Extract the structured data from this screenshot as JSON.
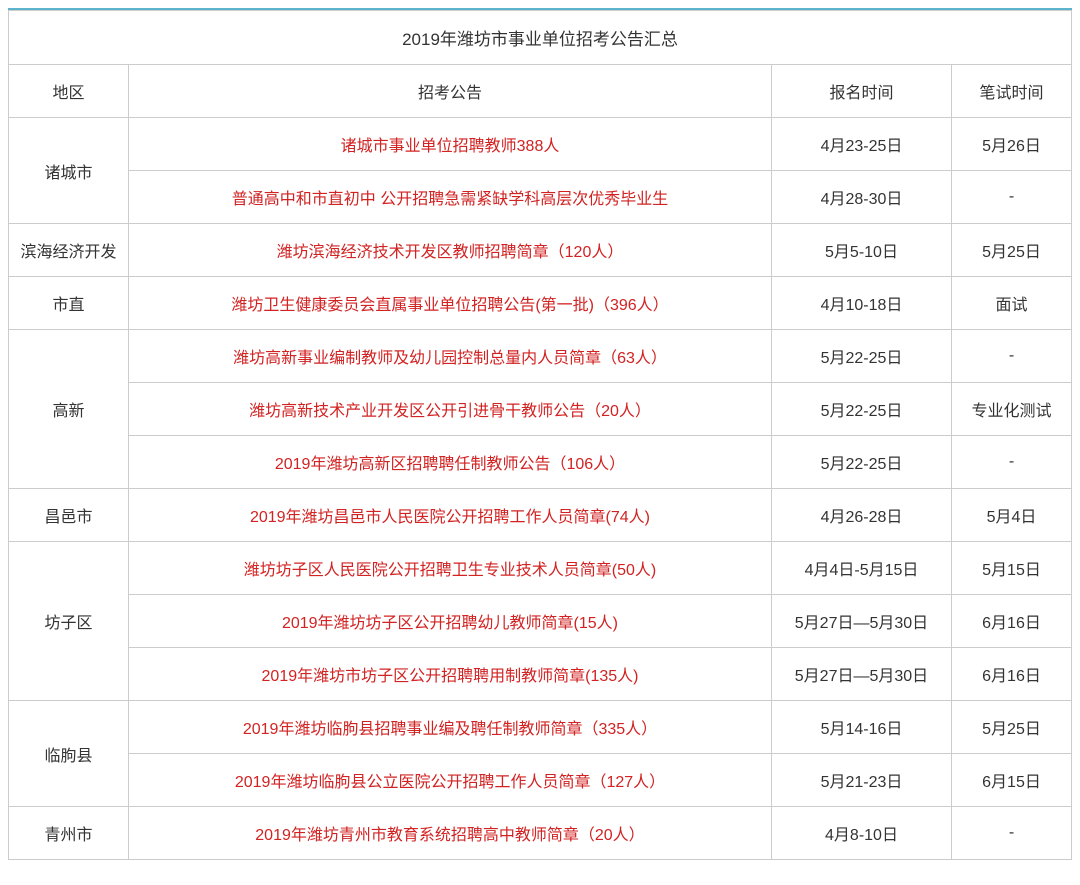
{
  "title": "2019年潍坊市事业单位招考公告汇总",
  "headers": {
    "region": "地区",
    "notice": "招考公告",
    "signup": "报名时间",
    "exam": "笔试时间"
  },
  "colors": {
    "border_top": "#5cb3cc",
    "border": "#cccccc",
    "link": "#d22222",
    "text": "#333333",
    "background": "#ffffff"
  },
  "font": {
    "family": "Microsoft YaHei",
    "size_title": 17,
    "size_body": 16
  },
  "column_widths": {
    "region": 120,
    "signup": 180,
    "exam": 120
  },
  "rows": [
    {
      "region": "诸城市",
      "rowspan": 2,
      "notice": "诸城市事业单位招聘教师388人",
      "signup": "4月23-25日",
      "exam": "5月26日"
    },
    {
      "notice": "普通高中和市直初中 公开招聘急需紧缺学科高层次优秀毕业生",
      "signup": "4月28-30日",
      "exam": "-"
    },
    {
      "region": "滨海经济开发",
      "rowspan": 1,
      "notice": "潍坊滨海经济技术开发区教师招聘简章（120人）",
      "signup": "5月5-10日",
      "exam": "5月25日"
    },
    {
      "region": "市直",
      "rowspan": 1,
      "notice": "潍坊卫生健康委员会直属事业单位招聘公告(第一批)（396人）",
      "signup": "4月10-18日",
      "exam": "面试"
    },
    {
      "region": "高新",
      "rowspan": 3,
      "notice": "潍坊高新事业编制教师及幼儿园控制总量内人员简章（63人）",
      "signup": "5月22-25日",
      "exam": "-"
    },
    {
      "notice": "潍坊高新技术产业开发区公开引进骨干教师公告（20人）",
      "signup": "5月22-25日",
      "exam": "专业化测试"
    },
    {
      "notice": "2019年潍坊高新区招聘聘任制教师公告（106人）",
      "signup": "5月22-25日",
      "exam": "-"
    },
    {
      "region": "昌邑市",
      "rowspan": 1,
      "notice": "2019年潍坊昌邑市人民医院公开招聘工作人员简章(74人)",
      "signup": "4月26-28日",
      "exam": "5月4日"
    },
    {
      "region": "坊子区",
      "rowspan": 3,
      "notice": "潍坊坊子区人民医院公开招聘卫生专业技术人员简章(50人)",
      "signup": "4月4日-5月15日",
      "exam": "5月15日"
    },
    {
      "notice": "2019年潍坊坊子区公开招聘幼儿教师简章(15人)",
      "signup": "5月27日—5月30日",
      "exam": "6月16日"
    },
    {
      "notice": "2019年潍坊市坊子区公开招聘聘用制教师简章(135人)",
      "signup": "5月27日—5月30日",
      "exam": "6月16日"
    },
    {
      "region": "临朐县",
      "rowspan": 2,
      "notice": "2019年潍坊临朐县招聘事业编及聘任制教师简章（335人）",
      "signup": "5月14-16日",
      "exam": "5月25日"
    },
    {
      "notice": "2019年潍坊临朐县公立医院公开招聘工作人员简章（127人）",
      "signup": "5月21-23日",
      "exam": "6月15日"
    },
    {
      "region": "青州市",
      "rowspan": 1,
      "notice": "2019年潍坊青州市教育系统招聘高中教师简章（20人）",
      "signup": "4月8-10日",
      "exam": "-"
    }
  ]
}
